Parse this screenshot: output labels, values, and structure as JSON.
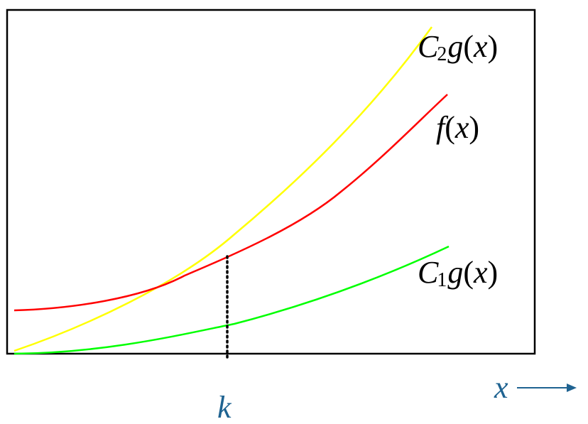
{
  "diagram": {
    "colors": {
      "frame": "#000000",
      "c2g": "#ffff00",
      "f": "#ff0000",
      "c1g": "#00ff00",
      "axis": "#1f6391",
      "marker": "#000000"
    },
    "labels": {
      "c2g": {
        "name": "C",
        "sub": "2",
        "fn": "g",
        "open": "(",
        "var": "x",
        "close": ")"
      },
      "f": {
        "fn": "f",
        "open": "(",
        "var": "x",
        "close": ")"
      },
      "c1g": {
        "name": "C",
        "sub": "1",
        "fn": "g",
        "open": "(",
        "var": "x",
        "close": ")"
      }
    },
    "k_label": "k",
    "x_label": "x"
  }
}
